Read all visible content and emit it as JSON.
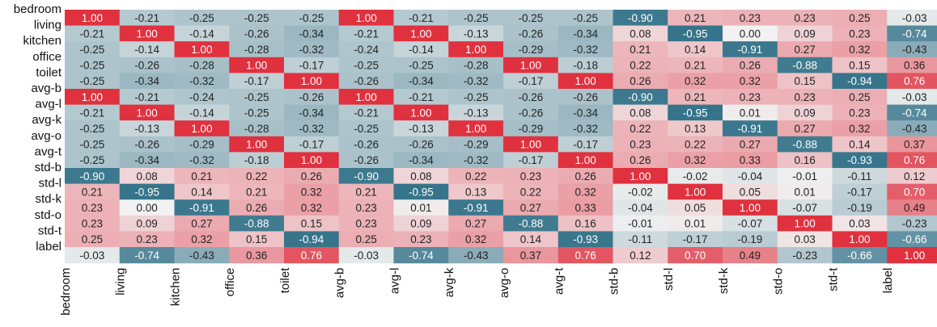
{
  "chart_data": {
    "type": "heatmap",
    "title": "",
    "xlabel": "",
    "ylabel": "",
    "vmin": -1,
    "vmax": 1,
    "colors": {
      "negative": "#2e6f86",
      "neutral": "#f2f2f2",
      "positive": "#e0313f"
    },
    "rows": [
      "bedroom",
      "living",
      "kitchen",
      "office",
      "toilet",
      "avg-b",
      "avg-l",
      "avg-k",
      "avg-o",
      "avg-t",
      "std-b",
      "std-l",
      "std-k",
      "std-o",
      "std-t",
      "label"
    ],
    "cols": [
      "bedroom",
      "living",
      "kitchen",
      "office",
      "toilet",
      "avg-b",
      "avg-l",
      "avg-k",
      "avg-o",
      "avg-t",
      "std-b",
      "std-l",
      "std-k",
      "std-o",
      "std-t",
      "label"
    ],
    "values": [
      [
        "1.00",
        "-0.21",
        "-0.25",
        "-0.25",
        "-0.25",
        "1.00",
        "-0.21",
        "-0.25",
        "-0.25",
        "-0.25",
        "-0.90",
        "0.21",
        "0.23",
        "0.23",
        "0.25",
        "-0.03"
      ],
      [
        "-0.21",
        "1.00",
        "-0.14",
        "-0.26",
        "-0.34",
        "-0.21",
        "1.00",
        "-0.13",
        "-0.26",
        "-0.34",
        "0.08",
        "-0.95",
        "0.00",
        "0.09",
        "0.23",
        "-0.74"
      ],
      [
        "-0.25",
        "-0.14",
        "1.00",
        "-0.28",
        "-0.32",
        "-0.24",
        "-0.14",
        "1.00",
        "-0.29",
        "-0.32",
        "0.21",
        "0.14",
        "-0.91",
        "0.27",
        "0.32",
        "-0.43"
      ],
      [
        "-0.25",
        "-0.26",
        "-0.28",
        "1.00",
        "-0.17",
        "-0.25",
        "-0.25",
        "-0.28",
        "1.00",
        "-0.18",
        "0.22",
        "0.21",
        "0.26",
        "-0.88",
        "0.15",
        "0.36"
      ],
      [
        "-0.25",
        "-0.34",
        "-0.32",
        "-0.17",
        "1.00",
        "-0.26",
        "-0.34",
        "-0.32",
        "-0.17",
        "1.00",
        "0.26",
        "0.32",
        "0.32",
        "0.15",
        "-0.94",
        "0.76"
      ],
      [
        "1.00",
        "-0.21",
        "-0.24",
        "-0.25",
        "-0.26",
        "1.00",
        "-0.21",
        "-0.25",
        "-0.26",
        "-0.26",
        "-0.90",
        "0.21",
        "0.23",
        "0.23",
        "0.25",
        "-0.03"
      ],
      [
        "-0.21",
        "1.00",
        "-0.14",
        "-0.25",
        "-0.34",
        "-0.21",
        "1.00",
        "-0.13",
        "-0.26",
        "-0.34",
        "0.08",
        "-0.95",
        "0.01",
        "0.09",
        "0.23",
        "-0.74"
      ],
      [
        "-0.25",
        "-0.13",
        "1.00",
        "-0.28",
        "-0.32",
        "-0.25",
        "-0.13",
        "1.00",
        "-0.29",
        "-0.32",
        "0.22",
        "0.13",
        "-0.91",
        "0.27",
        "0.32",
        "-0.43"
      ],
      [
        "-0.25",
        "-0.26",
        "-0.29",
        "1.00",
        "-0.17",
        "-0.26",
        "-0.26",
        "-0.29",
        "1.00",
        "-0.17",
        "0.23",
        "0.22",
        "0.27",
        "-0.88",
        "0.14",
        "0.37"
      ],
      [
        "-0.25",
        "-0.34",
        "-0.32",
        "-0.18",
        "1.00",
        "-0.26",
        "-0.34",
        "-0.32",
        "-0.17",
        "1.00",
        "0.26",
        "0.32",
        "0.33",
        "0.16",
        "-0.93",
        "0.76"
      ],
      [
        "-0.90",
        "0.08",
        "0.21",
        "0.22",
        "0.26",
        "-0.90",
        "0.08",
        "0.22",
        "0.23",
        "0.26",
        "1.00",
        "-0.02",
        "-0.04",
        "-0.01",
        "-0.11",
        "0.12"
      ],
      [
        "0.21",
        "-0.95",
        "0.14",
        "0.21",
        "0.32",
        "0.21",
        "-0.95",
        "0.13",
        "0.22",
        "0.32",
        "-0.02",
        "1.00",
        "0.05",
        "0.01",
        "-0.17",
        "0.70"
      ],
      [
        "0.23",
        "0.00",
        "-0.91",
        "0.26",
        "0.32",
        "0.23",
        "0.01",
        "-0.91",
        "0.27",
        "0.33",
        "-0.04",
        "0.05",
        "1.00",
        "-0.07",
        "-0.19",
        "0.49"
      ],
      [
        "0.23",
        "0.09",
        "0.27",
        "-0.88",
        "0.15",
        "0.23",
        "0.09",
        "0.27",
        "-0.88",
        "0.16",
        "-0.01",
        "0.01",
        "-0.07",
        "1.00",
        "0.03",
        "-0.23"
      ],
      [
        "0.25",
        "0.23",
        "0.32",
        "0.15",
        "-0.94",
        "0.25",
        "0.23",
        "0.32",
        "0.14",
        "-0.93",
        "-0.11",
        "-0.17",
        "-0.19",
        "0.03",
        "1.00",
        "-0.66"
      ],
      [
        "-0.03",
        "-0.74",
        "-0.43",
        "0.36",
        "0.76",
        "-0.03",
        "-0.74",
        "-0.43",
        "0.37",
        "0.76",
        "0.12",
        "0.70",
        "0.49",
        "-0.23",
        "-0.66",
        "1.00"
      ]
    ]
  }
}
